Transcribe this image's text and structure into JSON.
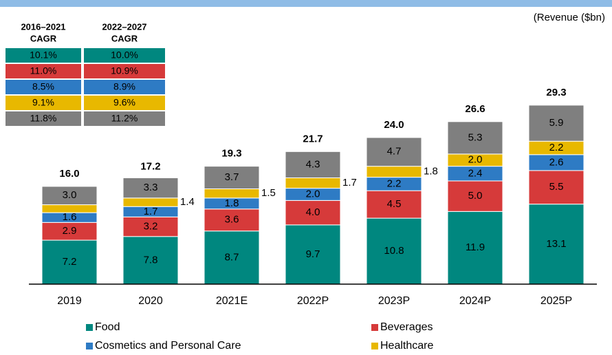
{
  "chart_data": {
    "type": "stacked_bar",
    "unit_label": "(Revenue ($bn)",
    "categories": [
      "2019",
      "2020",
      "2021E",
      "2022P",
      "2023P",
      "2024P",
      "2025P"
    ],
    "ylim": [
      0,
      33
    ],
    "series": [
      {
        "name": "Food",
        "color": "#00877f",
        "values": [
          7.2,
          7.8,
          8.7,
          9.7,
          10.8,
          11.9,
          13.1
        ],
        "value_labels": [
          "7.2",
          "7.8",
          "8.7",
          "9.7",
          "10.8",
          "11.9",
          "13.1"
        ]
      },
      {
        "name": "Beverages",
        "color": "#d63a3a",
        "values": [
          2.9,
          3.2,
          3.6,
          4.0,
          4.5,
          5.0,
          5.5
        ],
        "value_labels": [
          "2.9",
          "3.2",
          "3.6",
          "4.0",
          "4.5",
          "5.0",
          "5.5"
        ]
      },
      {
        "name": "Cosmetics and Personal Care",
        "color": "#2e7bc4",
        "values": [
          1.6,
          1.7,
          1.8,
          2.0,
          2.2,
          2.4,
          2.6
        ],
        "value_labels": [
          "1.6",
          "1.7",
          "1.8",
          "2.0",
          "2.2",
          "2.4",
          "2.6"
        ]
      },
      {
        "name": "Healthcare",
        "color": "#e8b800",
        "values": [
          1.3,
          1.4,
          1.5,
          1.7,
          1.8,
          2.0,
          2.2
        ],
        "value_labels": [
          null,
          "1.4",
          "1.5",
          "1.7",
          "1.8",
          "2.0",
          "2.2"
        ]
      },
      {
        "color": "#7f7f7f",
        "values": [
          3.0,
          3.3,
          3.7,
          4.3,
          4.7,
          5.3,
          5.9
        ],
        "value_labels": [
          "3.0",
          "3.3",
          "3.7",
          "4.3",
          "4.7",
          "5.3",
          "5.9"
        ]
      }
    ],
    "totals": [
      16.0,
      17.2,
      19.3,
      21.7,
      24.0,
      26.6,
      29.3
    ],
    "total_labels": [
      "16.0",
      "17.2",
      "19.3",
      "21.7",
      "24.0",
      "26.6",
      "29.3"
    ],
    "cagr_table": {
      "headers": [
        [
          "2016–2021",
          "CAGR"
        ],
        [
          "2022–2027",
          "CAGR"
        ]
      ],
      "rows": [
        [
          "10.1%",
          "10.0%"
        ],
        [
          "11.0%",
          "10.9%"
        ],
        [
          "8.5%",
          "8.9%"
        ],
        [
          "9.1%",
          "9.6%"
        ],
        [
          "11.8%",
          "11.2%"
        ]
      ]
    }
  }
}
